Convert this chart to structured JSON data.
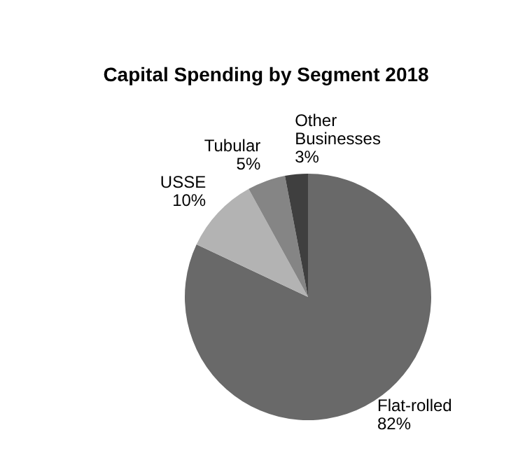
{
  "chart_data": {
    "type": "pie",
    "title": "Capital Spending by Segment 2018",
    "categories": [
      "Flat-rolled",
      "USSE",
      "Tubular",
      "Other Businesses"
    ],
    "values": [
      82,
      10,
      5,
      3
    ],
    "value_labels": [
      "82%",
      "10%",
      "5%",
      "3%"
    ],
    "colors": [
      "#696969",
      "#b3b3b3",
      "#858585",
      "#3f3f3f"
    ],
    "legend": false
  }
}
